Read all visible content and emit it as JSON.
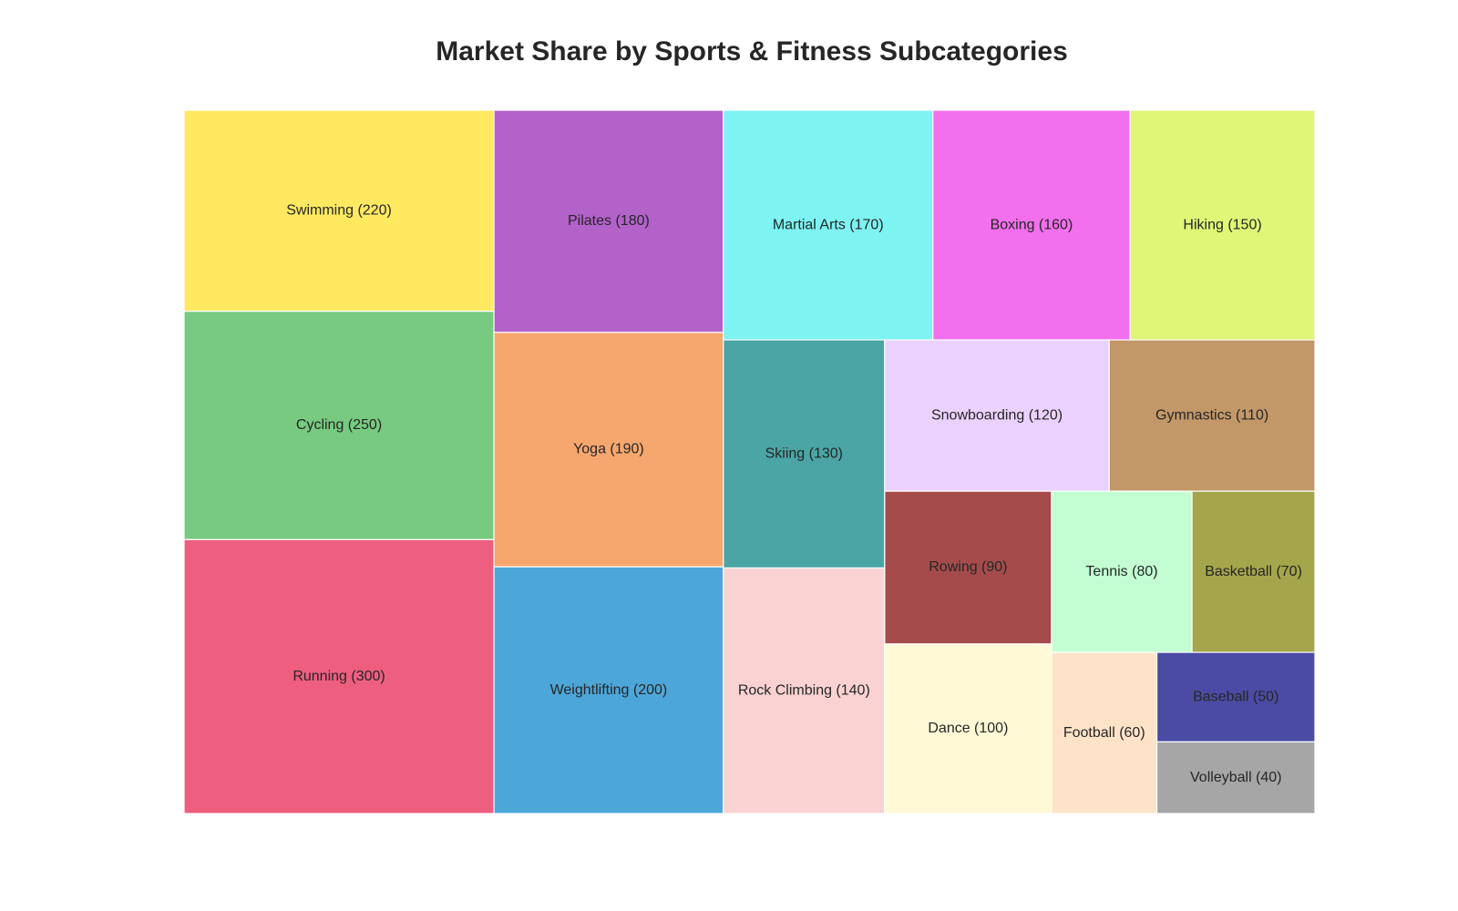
{
  "chart_data": {
    "type": "treemap",
    "title": "Market Share by Sports & Fitness Subcategories",
    "items": [
      {
        "name": "Running",
        "value": 300,
        "label": "Running (300)",
        "color": "#ee5e7f"
      },
      {
        "name": "Cycling",
        "value": 250,
        "label": "Cycling (250)",
        "color": "#78ca80"
      },
      {
        "name": "Swimming",
        "value": 220,
        "label": "Swimming (220)",
        "color": "#ffe961"
      },
      {
        "name": "Weightlifting",
        "value": 200,
        "label": "Weightlifting (200)",
        "color": "#4ca6d8"
      },
      {
        "name": "Yoga",
        "value": 190,
        "label": "Yoga (190)",
        "color": "#f6a76e"
      },
      {
        "name": "Pilates",
        "value": 180,
        "label": "Pilates (180)",
        "color": "#b262c9"
      },
      {
        "name": "Martial Arts",
        "value": 170,
        "label": "Martial Arts (170)",
        "color": "#7df3f2"
      },
      {
        "name": "Boxing",
        "value": 160,
        "label": "Boxing (160)",
        "color": "#f26fed"
      },
      {
        "name": "Hiking",
        "value": 150,
        "label": "Hiking (150)",
        "color": "#dff676"
      },
      {
        "name": "Rock Climbing",
        "value": 140,
        "label": "Rock Climbing (140)",
        "color": "#fad2d2"
      },
      {
        "name": "Skiing",
        "value": 130,
        "label": "Skiing (130)",
        "color": "#4ba5a5"
      },
      {
        "name": "Snowboarding",
        "value": 120,
        "label": "Snowboarding (120)",
        "color": "#ebd2fe"
      },
      {
        "name": "Gymnastics",
        "value": 110,
        "label": "Gymnastics (110)",
        "color": "#c39868"
      },
      {
        "name": "Dance",
        "value": 100,
        "label": "Dance (100)",
        "color": "#fff9d6"
      },
      {
        "name": "Rowing",
        "value": 90,
        "label": "Rowing (90)",
        "color": "#a54b4b"
      },
      {
        "name": "Tennis",
        "value": 80,
        "label": "Tennis (80)",
        "color": "#c3fed3"
      },
      {
        "name": "Basketball",
        "value": 70,
        "label": "Basketball (70)",
        "color": "#a5a54b"
      },
      {
        "name": "Football",
        "value": 60,
        "label": "Football (60)",
        "color": "#fee3c8"
      },
      {
        "name": "Baseball",
        "value": 50,
        "label": "Baseball (50)",
        "color": "#4b4ba6"
      },
      {
        "name": "Volleyball",
        "value": 40,
        "label": "Volleyball (40)",
        "color": "#a6a6a6"
      }
    ]
  }
}
